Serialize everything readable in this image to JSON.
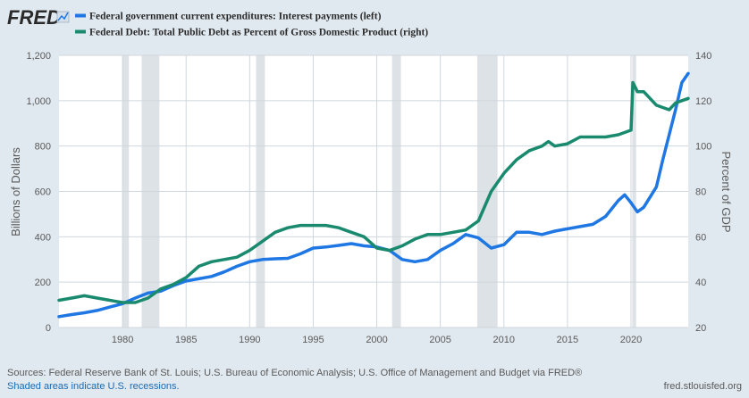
{
  "brand": {
    "name": "FRED"
  },
  "colors": {
    "left_series": "#1f77e4",
    "right_series": "#1a8a6e",
    "recession": "#dde2e6",
    "grid": "#cfd6dc",
    "background": "#e1e9f0",
    "plot_bg": "#ffffff"
  },
  "footer": {
    "sources": "Sources: Federal Reserve Bank of St. Louis; U.S. Bureau of Economic Analysis; U.S. Office of Management and Budget via FRED®",
    "note": "Shaded areas indicate U.S. recessions.",
    "site": "fred.stlouisfed.org"
  },
  "chart_data": {
    "type": "line",
    "title": "",
    "xlabel": "",
    "ylabel_left": "Billions of Dollars",
    "ylabel_right": "Percent of GDP",
    "xlim": [
      1975.0,
      2024.5
    ],
    "ylim_left": [
      0,
      1200
    ],
    "ylim_right": [
      20,
      140
    ],
    "x_ticks": [
      1980,
      1985,
      1990,
      1995,
      2000,
      2005,
      2010,
      2015,
      2020
    ],
    "y_ticks_left": [
      0,
      200,
      400,
      600,
      800,
      1000,
      1200
    ],
    "y_tick_labels_left": [
      "0",
      "200",
      "400",
      "600",
      "800",
      "1,000",
      "1,200"
    ],
    "y_ticks_right": [
      20,
      40,
      60,
      80,
      100,
      120,
      140
    ],
    "grid": true,
    "legend_position": "top-left",
    "recessions": [
      [
        1980.0,
        1980.5
      ],
      [
        1981.5,
        1982.9
      ],
      [
        1990.5,
        1991.2
      ],
      [
        2001.2,
        2001.9
      ],
      [
        2007.9,
        2009.5
      ],
      [
        2020.1,
        2020.4
      ]
    ],
    "series": [
      {
        "name": "Federal government current expenditures: Interest payments (left)",
        "axis": "left",
        "x": [
          1975.0,
          1976.0,
          1977.0,
          1978.0,
          1979.0,
          1980.0,
          1981.0,
          1982.0,
          1983.0,
          1984.0,
          1985.0,
          1986.0,
          1987.0,
          1988.0,
          1989.0,
          1990.0,
          1991.0,
          1992.0,
          1993.0,
          1994.0,
          1995.0,
          1996.0,
          1997.0,
          1998.0,
          1999.0,
          2000.0,
          2001.0,
          2002.0,
          2003.0,
          2004.0,
          2005.0,
          2006.0,
          2007.0,
          2008.0,
          2009.0,
          2010.0,
          2011.0,
          2012.0,
          2013.0,
          2014.0,
          2015.0,
          2016.0,
          2017.0,
          2018.0,
          2019.0,
          2019.5,
          2020.0,
          2020.5,
          2021.0,
          2022.0,
          2022.5,
          2023.0,
          2023.5,
          2024.0,
          2024.5
        ],
        "values": [
          48,
          57,
          65,
          75,
          90,
          105,
          130,
          152,
          160,
          185,
          205,
          215,
          225,
          245,
          270,
          290,
          300,
          303,
          305,
          325,
          350,
          355,
          362,
          370,
          360,
          355,
          340,
          300,
          290,
          300,
          340,
          370,
          410,
          395,
          350,
          365,
          420,
          420,
          410,
          425,
          435,
          445,
          455,
          490,
          560,
          585,
          550,
          510,
          530,
          620,
          740,
          850,
          960,
          1080,
          1120
        ]
      },
      {
        "name": "Federal Debt: Total Public Debt as Percent of Gross Domestic Product (right)",
        "axis": "right",
        "x": [
          1975.0,
          1976.0,
          1977.0,
          1978.0,
          1979.0,
          1980.0,
          1981.0,
          1982.0,
          1983.0,
          1984.0,
          1985.0,
          1986.0,
          1987.0,
          1988.0,
          1989.0,
          1990.0,
          1991.0,
          1992.0,
          1993.0,
          1994.0,
          1995.0,
          1996.0,
          1997.0,
          1998.0,
          1999.0,
          2000.0,
          2001.0,
          2002.0,
          2003.0,
          2004.0,
          2005.0,
          2006.0,
          2007.0,
          2008.0,
          2009.0,
          2010.0,
          2011.0,
          2012.0,
          2013.0,
          2013.5,
          2014.0,
          2015.0,
          2016.0,
          2017.0,
          2018.0,
          2019.0,
          2020.0,
          2020.15,
          2020.5,
          2021.0,
          2022.0,
          2022.5,
          2023.0,
          2023.5,
          2024.0,
          2024.5
        ],
        "values": [
          32,
          33,
          34,
          33,
          32,
          31,
          31,
          33,
          37,
          39,
          42,
          47,
          49,
          50,
          51,
          54,
          58,
          62,
          64,
          65,
          65,
          65,
          64,
          62,
          60,
          55,
          54,
          56,
          59,
          61,
          61,
          62,
          63,
          67,
          80,
          88,
          94,
          98,
          100,
          102,
          100,
          101,
          104,
          104,
          104,
          105,
          107,
          128,
          124,
          124,
          118,
          117,
          116,
          119,
          120,
          121
        ]
      }
    ]
  }
}
